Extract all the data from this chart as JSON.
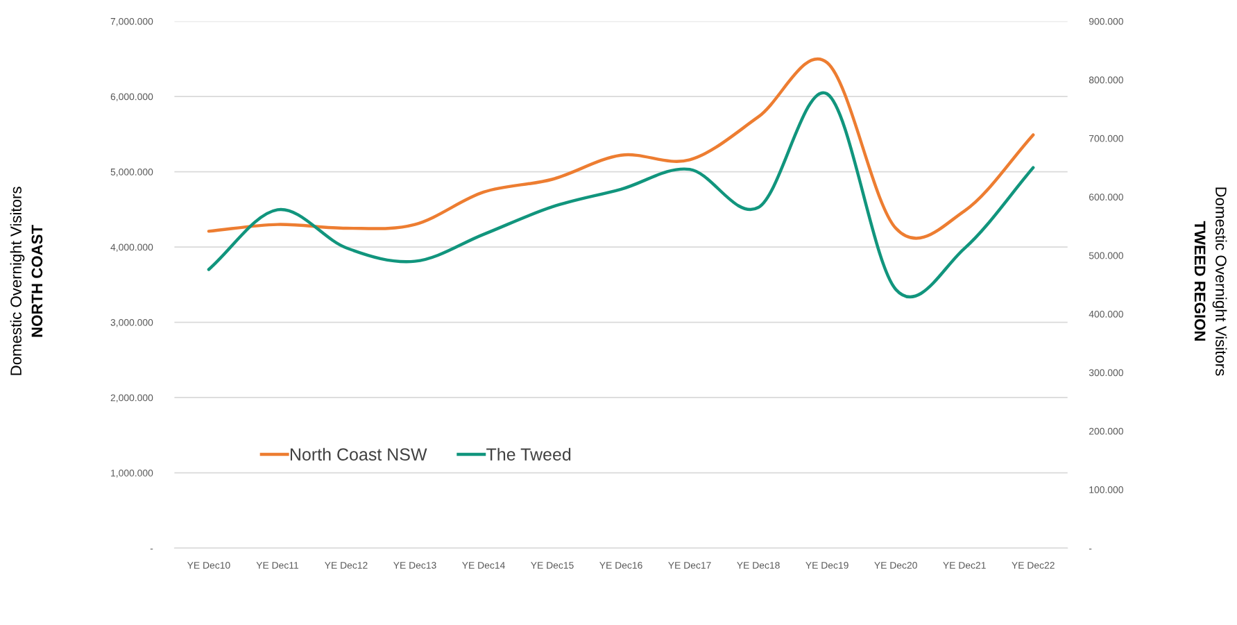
{
  "chart_data": {
    "type": "line",
    "categories": [
      "YE Dec10",
      "YE Dec11",
      "YE Dec12",
      "YE Dec13",
      "YE Dec14",
      "YE Dec15",
      "YE Dec16",
      "YE Dec17",
      "YE Dec18",
      "YE Dec19",
      "YE Dec20",
      "YE Dec21",
      "YE Dec22"
    ],
    "series": [
      {
        "name": "North Coast NSW",
        "color": "#ed7d31",
        "values": [
          4210,
          4300,
          4250,
          4300,
          4730,
          4900,
          5220,
          5160,
          5730,
          6450,
          4250,
          4480,
          5490
        ]
      },
      {
        "name": "The Tweed",
        "color": "#11957d",
        "axis": "y2",
        "values": [
          476,
          578,
          513,
          490,
          536,
          583,
          613,
          647,
          582,
          776,
          442,
          512,
          650
        ]
      }
    ],
    "ylabel": "Domestic Overnight Visitors\nNORTH COAST",
    "y2label": "Domestic Overnight Visitors\nTWEED REGION",
    "ylim": [
      0,
      7000
    ],
    "yticks": [
      {
        "value": 0,
        "label": "-"
      },
      {
        "value": 1000,
        "label": "1,000.000"
      },
      {
        "value": 2000,
        "label": "2,000.000"
      },
      {
        "value": 3000,
        "label": "3,000.000"
      },
      {
        "value": 4000,
        "label": "4,000.000"
      },
      {
        "value": 5000,
        "label": "5,000.000"
      },
      {
        "value": 6000,
        "label": "6,000.000"
      },
      {
        "value": 7000,
        "label": "7,000.000"
      }
    ],
    "y2lim": [
      0,
      900
    ],
    "y2ticks": [
      {
        "value": 0,
        "label": "-"
      },
      {
        "value": 100,
        "label": "100.000"
      },
      {
        "value": 200,
        "label": "200.000"
      },
      {
        "value": 300,
        "label": "300.000"
      },
      {
        "value": 400,
        "label": "400.000"
      },
      {
        "value": 500,
        "label": "500.000"
      },
      {
        "value": 600,
        "label": "600.000"
      },
      {
        "value": 700,
        "label": "700.000"
      },
      {
        "value": 800,
        "label": "800.000"
      },
      {
        "value": 900,
        "label": "900.000"
      }
    ],
    "grid": "y",
    "legend": "bottom left",
    "marker": "none",
    "line_style": "solid"
  }
}
